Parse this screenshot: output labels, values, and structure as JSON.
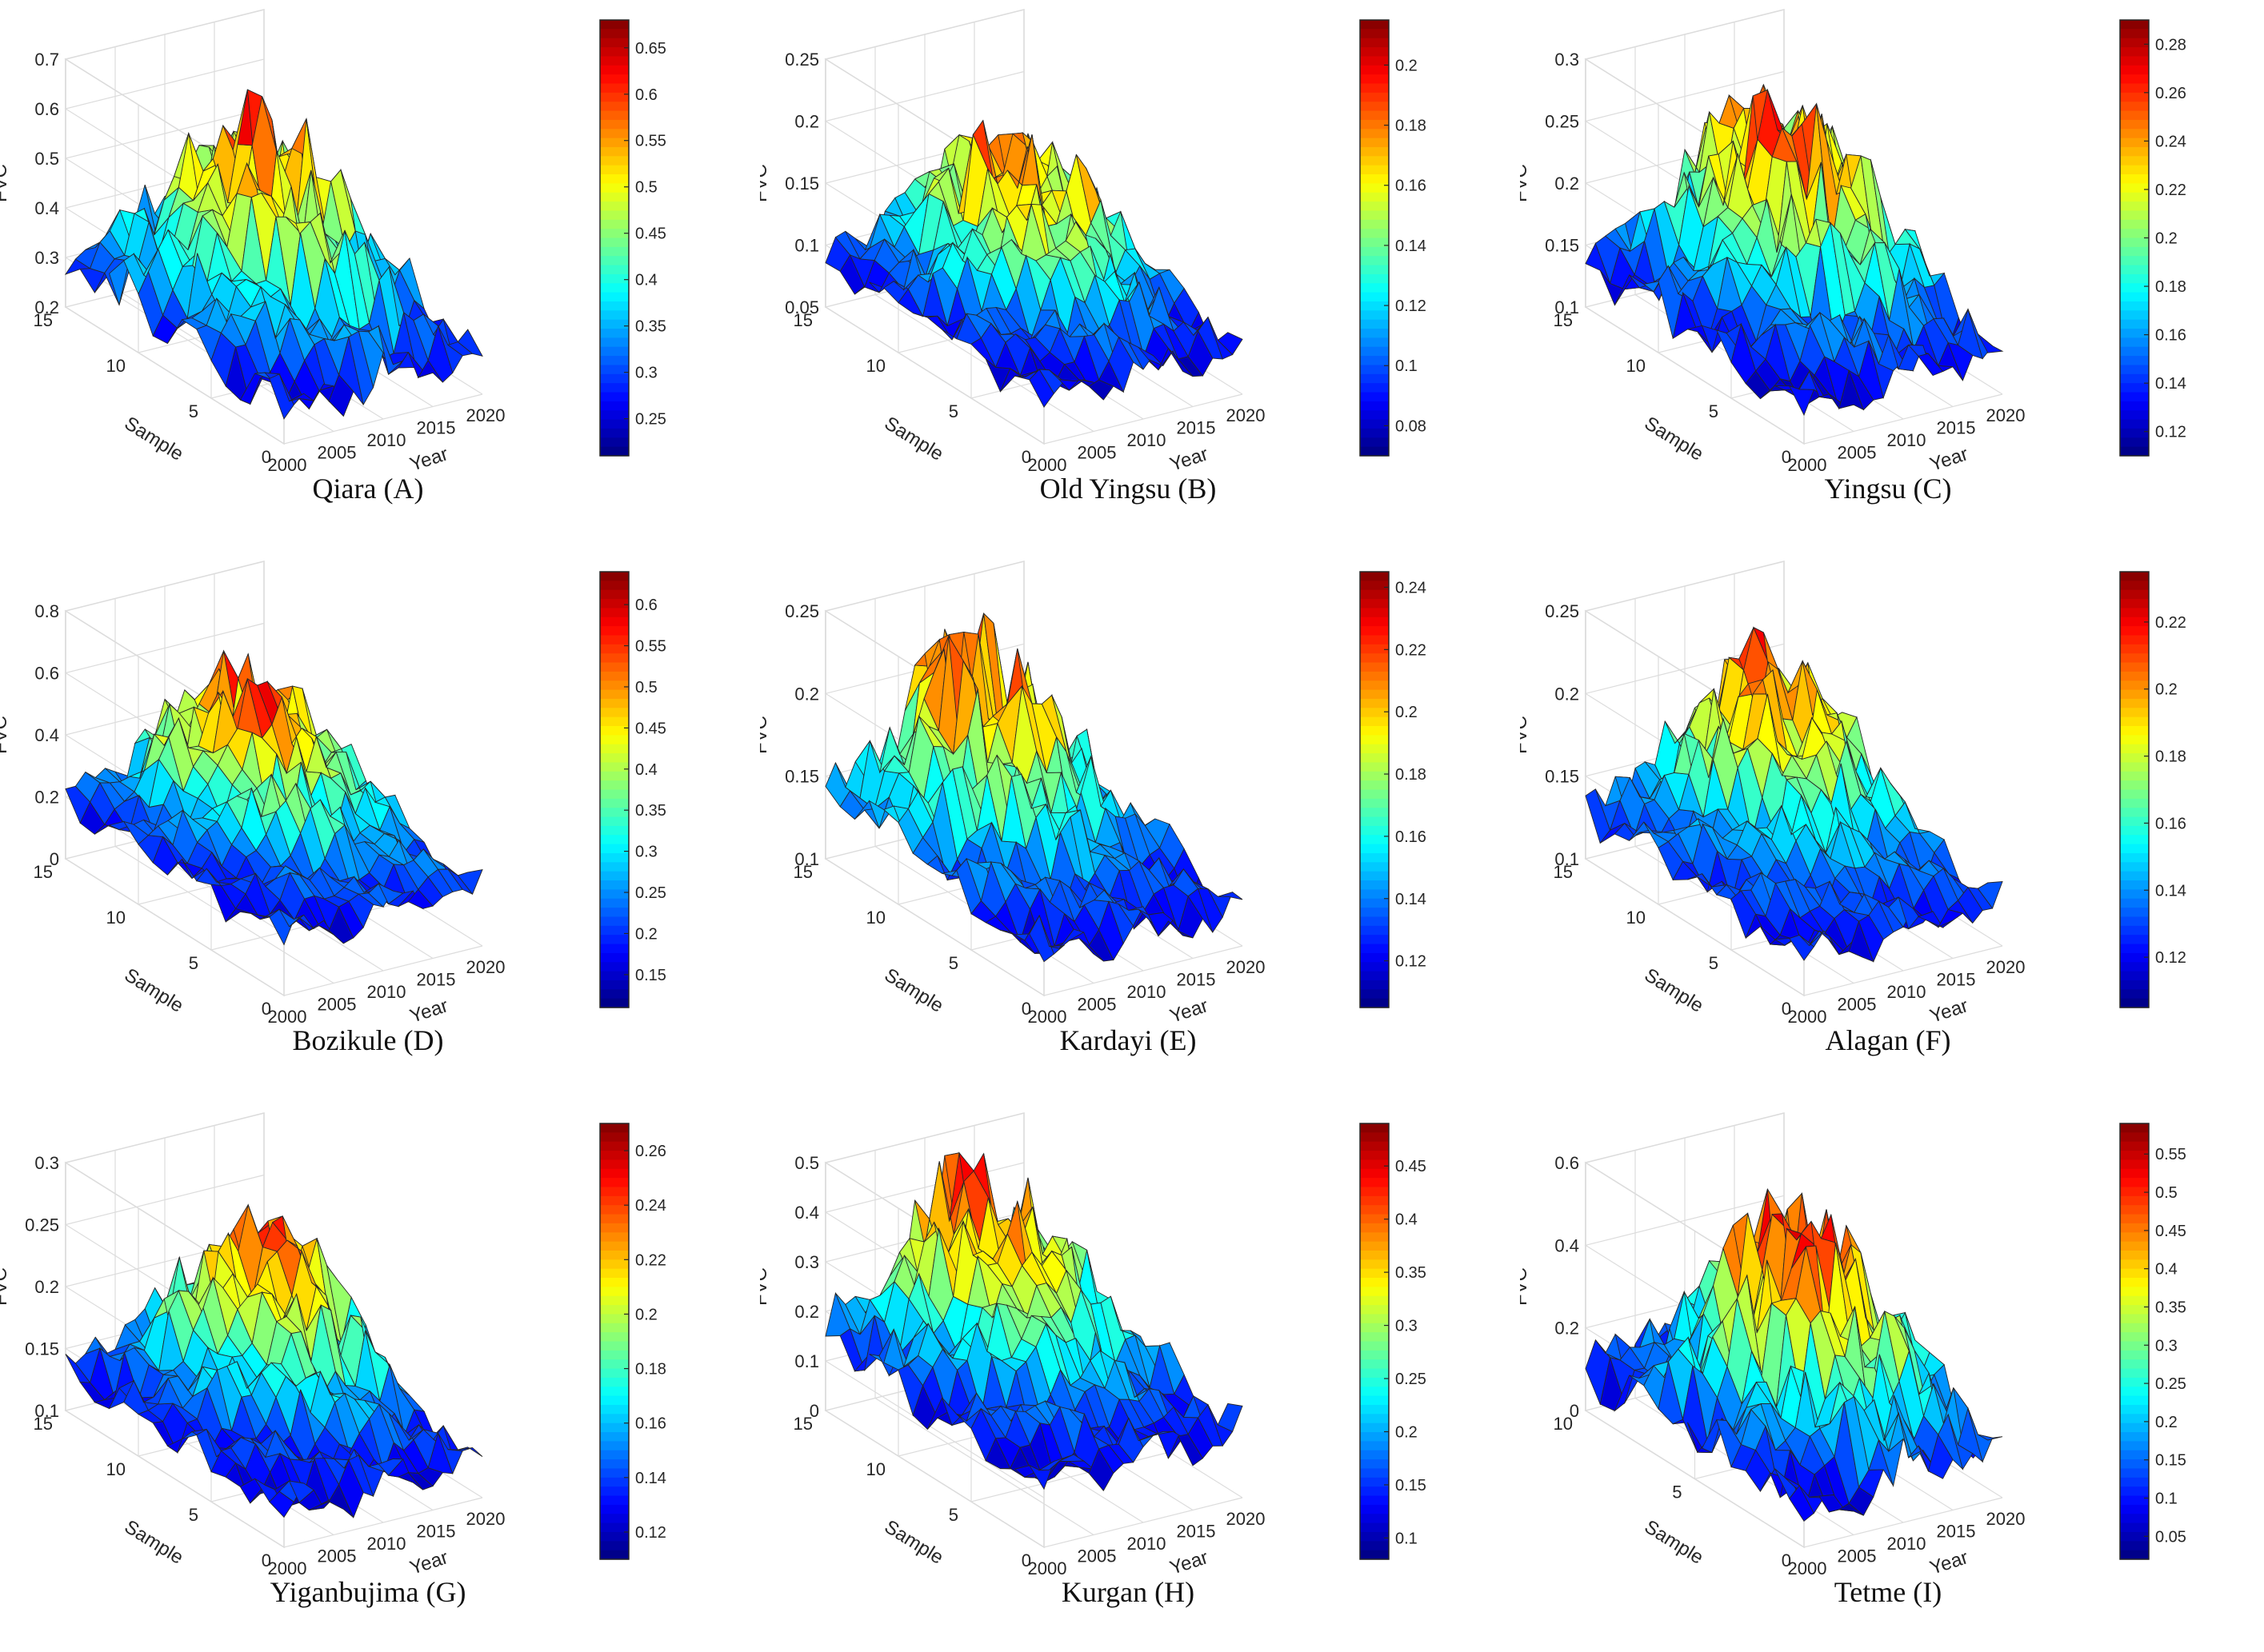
{
  "figure": {
    "caption_suffixes": [
      "(A)",
      "(B)",
      "(C)",
      "(D)",
      "(E)",
      "(F)",
      "(G)",
      "(H)",
      "(I)"
    ]
  },
  "colors": {
    "colormap": "jet",
    "axis": "#262626",
    "grid": "#dcdcdc",
    "edge": "#262626"
  },
  "chart_data": [
    {
      "type": "surface3d",
      "title": "Qiara (A)",
      "site": "Qiara",
      "letter": "(A)",
      "zlabel": "FVC",
      "xlabel": "Year",
      "ylabel": "Sample",
      "z_ticks": [
        "0.2",
        "0.3",
        "0.4",
        "0.5",
        "0.6",
        "0.7"
      ],
      "z_range": [
        0.2,
        0.7
      ],
      "year_ticks": [
        "2000",
        "2005",
        "2010",
        "2015",
        "2020"
      ],
      "sample_ticks": [
        "0",
        "5",
        "10",
        "15"
      ],
      "colorbar_ticks": [
        "0.25",
        "0.3",
        "0.35",
        "0.4",
        "0.45",
        "0.5",
        "0.55",
        "0.6",
        "0.65"
      ],
      "colorbar_range": [
        0.21,
        0.68
      ],
      "seed": 11,
      "min_fvc": 0.22,
      "max_fvc": 0.68,
      "peak_sample": 9,
      "peak_year": 2011
    },
    {
      "type": "surface3d",
      "title": "Old Yingsu (B)",
      "site": "Old Yingsu",
      "letter": "(B)",
      "zlabel": "FVC",
      "xlabel": "Year",
      "ylabel": "Sample",
      "z_ticks": [
        "0.05",
        "0.1",
        "0.15",
        "0.2",
        "0.25"
      ],
      "z_range": [
        0.05,
        0.25
      ],
      "year_ticks": [
        "2000",
        "2005",
        "2010",
        "2015",
        "2020"
      ],
      "sample_ticks": [
        "0",
        "5",
        "10",
        "15"
      ],
      "colorbar_ticks": [
        "0.08",
        "0.1",
        "0.12",
        "0.14",
        "0.16",
        "0.18",
        "0.2"
      ],
      "colorbar_range": [
        0.07,
        0.215
      ],
      "seed": 23,
      "min_fvc": 0.07,
      "max_fvc": 0.21,
      "peak_sample": 10,
      "peak_year": 2012
    },
    {
      "type": "surface3d",
      "title": "Yingsu (C)",
      "site": "Yingsu",
      "letter": "(C)",
      "zlabel": "FVC",
      "xlabel": "Year",
      "ylabel": "Sample",
      "z_ticks": [
        "0.1",
        "0.15",
        "0.2",
        "0.25",
        "0.3"
      ],
      "z_range": [
        0.1,
        0.3
      ],
      "year_ticks": [
        "2000",
        "2005",
        "2010",
        "2015",
        "2020"
      ],
      "sample_ticks": [
        "0",
        "5",
        "10",
        "15"
      ],
      "colorbar_ticks": [
        "0.12",
        "0.14",
        "0.16",
        "0.18",
        "0.2",
        "0.22",
        "0.24",
        "0.26",
        "0.28"
      ],
      "colorbar_range": [
        0.11,
        0.29
      ],
      "seed": 37,
      "min_fvc": 0.11,
      "max_fvc": 0.29,
      "peak_sample": 10,
      "peak_year": 2013
    },
    {
      "type": "surface3d",
      "title": "Bozikule (D)",
      "site": "Bozikule",
      "letter": "(D)",
      "zlabel": "FVC",
      "xlabel": "Year",
      "ylabel": "Sample",
      "z_ticks": [
        "0",
        "0.2",
        "0.4",
        "0.6",
        "0.8"
      ],
      "z_range": [
        0,
        0.8
      ],
      "year_ticks": [
        "2000",
        "2005",
        "2010",
        "2015",
        "2020"
      ],
      "sample_ticks": [
        "0",
        "5",
        "10",
        "15"
      ],
      "colorbar_ticks": [
        "0.15",
        "0.2",
        "0.25",
        "0.3",
        "0.35",
        "0.4",
        "0.45",
        "0.5",
        "0.55",
        "0.6"
      ],
      "colorbar_range": [
        0.11,
        0.64
      ],
      "seed": 41,
      "min_fvc": 0.12,
      "max_fvc": 0.64,
      "peak_sample": 11,
      "peak_year": 2013
    },
    {
      "type": "surface3d",
      "title": "Kardayi (E)",
      "site": "Kardayi",
      "letter": "(E)",
      "zlabel": "FVC",
      "xlabel": "Year",
      "ylabel": "Sample",
      "z_ticks": [
        "0.1",
        "0.15",
        "0.2",
        "0.25"
      ],
      "z_range": [
        0.1,
        0.25
      ],
      "year_ticks": [
        "2000",
        "2005",
        "2010",
        "2015",
        "2020"
      ],
      "sample_ticks": [
        "0",
        "5",
        "10",
        "15"
      ],
      "colorbar_ticks": [
        "0.12",
        "0.14",
        "0.16",
        "0.18",
        "0.2",
        "0.22",
        "0.24"
      ],
      "colorbar_range": [
        0.105,
        0.245
      ],
      "seed": 53,
      "min_fvc": 0.11,
      "max_fvc": 0.24,
      "peak_sample": 12,
      "peak_year": 2011
    },
    {
      "type": "surface3d",
      "title": "Alagan (F)",
      "site": "Alagan",
      "letter": "(F)",
      "zlabel": "FVC",
      "xlabel": "Year",
      "ylabel": "Sample",
      "z_ticks": [
        "0.1",
        "0.15",
        "0.2",
        "0.25"
      ],
      "z_range": [
        0.1,
        0.25
      ],
      "year_ticks": [
        "2000",
        "2005",
        "2010",
        "2015",
        "2020"
      ],
      "sample_ticks": [
        "0",
        "5",
        "10",
        "15"
      ],
      "colorbar_ticks": [
        "0.12",
        "0.14",
        "0.16",
        "0.18",
        "0.2",
        "0.22"
      ],
      "colorbar_range": [
        0.105,
        0.235
      ],
      "seed": 67,
      "min_fvc": 0.11,
      "max_fvc": 0.23,
      "peak_sample": 12,
      "peak_year": 2014
    },
    {
      "type": "surface3d",
      "title": "Yiganbujima (G)",
      "site": "Yiganbujima",
      "letter": "(G)",
      "zlabel": "FVC",
      "xlabel": "Year",
      "ylabel": "Sample",
      "z_ticks": [
        "0.1",
        "0.15",
        "0.2",
        "0.25",
        "0.3"
      ],
      "z_range": [
        0.1,
        0.3
      ],
      "year_ticks": [
        "2000",
        "2005",
        "2010",
        "2015",
        "2020"
      ],
      "sample_ticks": [
        "0",
        "5",
        "10",
        "15"
      ],
      "colorbar_ticks": [
        "0.12",
        "0.14",
        "0.16",
        "0.18",
        "0.2",
        "0.22",
        "0.24",
        "0.26"
      ],
      "colorbar_range": [
        0.11,
        0.27
      ],
      "seed": 79,
      "min_fvc": 0.11,
      "max_fvc": 0.26,
      "peak_sample": 11,
      "peak_year": 2014
    },
    {
      "type": "surface3d",
      "title": "Kurgan (H)",
      "site": "Kurgan",
      "letter": "(H)",
      "zlabel": "FVC",
      "xlabel": "Year",
      "ylabel": "Sample",
      "z_ticks": [
        "0",
        "0.1",
        "0.2",
        "0.3",
        "0.4",
        "0.5"
      ],
      "z_range": [
        0,
        0.5
      ],
      "year_ticks": [
        "2000",
        "2005",
        "2010",
        "2015",
        "2020"
      ],
      "sample_ticks": [
        "0",
        "5",
        "10",
        "15"
      ],
      "colorbar_ticks": [
        "0.1",
        "0.15",
        "0.2",
        "0.25",
        "0.3",
        "0.35",
        "0.4",
        "0.45"
      ],
      "colorbar_range": [
        0.08,
        0.49
      ],
      "seed": 83,
      "min_fvc": 0.08,
      "max_fvc": 0.49,
      "peak_sample": 12,
      "peak_year": 2012
    },
    {
      "type": "surface3d",
      "title": "Tetme (I)",
      "site": "Tetme",
      "letter": "(I)",
      "zlabel": "FVC",
      "xlabel": "Year",
      "ylabel": "Sample",
      "z_ticks": [
        "0",
        "0.2",
        "0.4",
        "0.6"
      ],
      "z_range": [
        0,
        0.6
      ],
      "year_ticks": [
        "2000",
        "2005",
        "2010",
        "2015",
        "2020"
      ],
      "sample_ticks": [
        "0",
        "5",
        "10"
      ],
      "colorbar_ticks": [
        "0.05",
        "0.1",
        "0.15",
        "0.2",
        "0.25",
        "0.3",
        "0.35",
        "0.4",
        "0.45",
        "0.5",
        "0.55"
      ],
      "colorbar_range": [
        0.02,
        0.59
      ],
      "seed": 97,
      "min_fvc": 0.03,
      "max_fvc": 0.58,
      "peak_sample": 8,
      "peak_year": 2012
    }
  ]
}
